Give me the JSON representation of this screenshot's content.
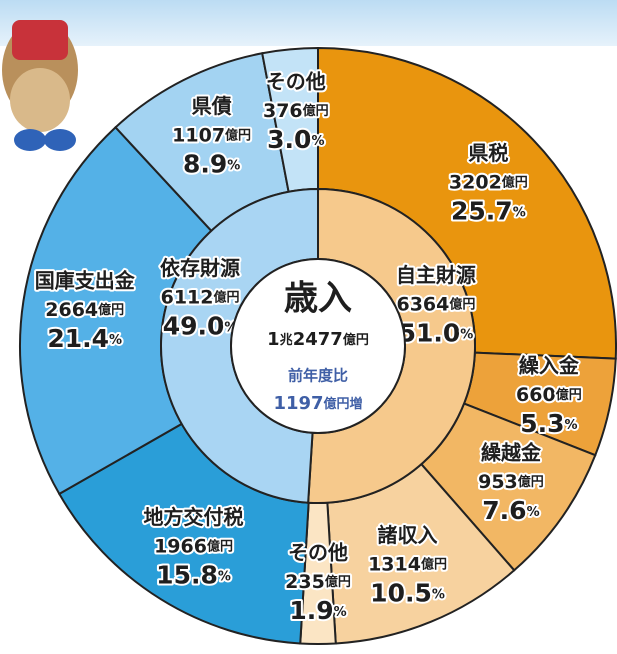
{
  "chart_data": {
    "type": "sunburst",
    "title": "歳入",
    "total_label": "1兆2477億円",
    "comparison_label": "前年度比",
    "change_label": "1197億円増",
    "rings": [
      {
        "categories": [
          "自主財源",
          "依存財源"
        ],
        "amount_labels": [
          "6364億円",
          "6112億円"
        ],
        "values": [
          51.0,
          49.0
        ],
        "value_labels": [
          "51.0%",
          "49.0%"
        ],
        "colors": [
          "#f6c98c",
          "#a9d5f3"
        ]
      },
      {
        "categories": [
          "県税",
          "繰入金",
          "繰越金",
          "諸収入",
          "その他",
          "地方交付税",
          "国庫支出金",
          "県債",
          "その他"
        ],
        "amount_labels": [
          "3202億円",
          "660億円",
          "953億円",
          "1314億円",
          "235億円",
          "1966億円",
          "2664億円",
          "1107億円",
          "376億円"
        ],
        "values": [
          25.7,
          5.3,
          7.6,
          10.5,
          1.9,
          15.8,
          21.4,
          8.9,
          3.0
        ],
        "value_labels": [
          "25.7%",
          "5.3%",
          "7.6%",
          "10.5%",
          "1.9%",
          "15.8%",
          "21.4%",
          "8.9%",
          "3.0%"
        ],
        "colors": [
          "#e9950e",
          "#eda23a",
          "#f2b764",
          "#f7d29f",
          "#fbe5c4",
          "#2a9ed8",
          "#54b1e7",
          "#a3d3f2",
          "#c3e3f7"
        ]
      }
    ]
  }
}
